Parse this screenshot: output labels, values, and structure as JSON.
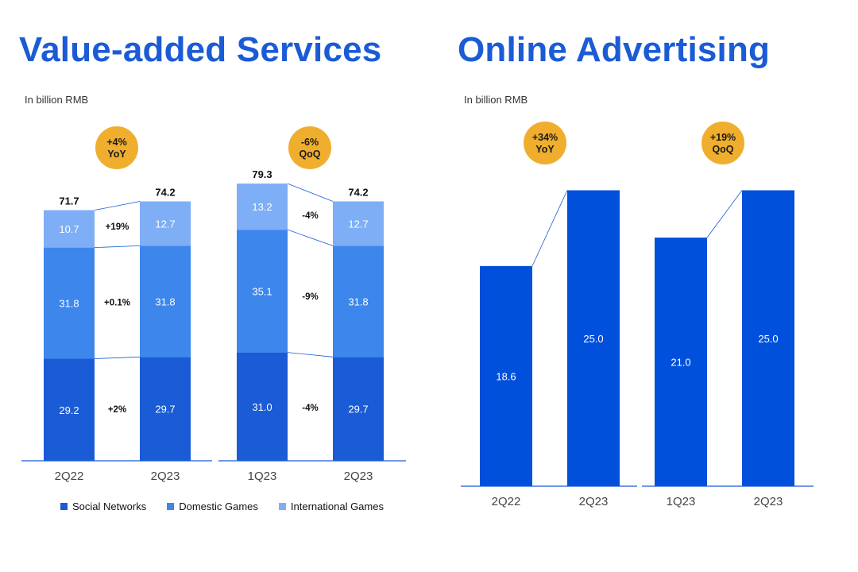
{
  "colors": {
    "social": "#1a5bd6",
    "domestic": "#3d86ec",
    "international": "#7eaef5",
    "ads": "#0050dc",
    "badge": "#f0ae2e",
    "axis": "#1a5bd6",
    "title": "#1a5bd6"
  },
  "vas": {
    "title": "Value-added Services",
    "unit": "In billion RMB"
  },
  "ads": {
    "title": "Online Advertising",
    "unit": "In billion RMB"
  },
  "legend": [
    {
      "label": "Social Networks",
      "series": "social"
    },
    {
      "label": "Domestic Games",
      "series": "domestic"
    },
    {
      "label": "International Games",
      "series": "international"
    }
  ],
  "chart_data": [
    {
      "type": "bar",
      "stacked": true,
      "name": "vas-yoy",
      "title": "Value-added Services",
      "unit": "In billion RMB",
      "categories": [
        "2Q22",
        "2Q23"
      ],
      "totals": [
        "71.7",
        "74.2"
      ],
      "series": [
        {
          "key": "social",
          "name": "Social Networks",
          "values": [
            29.2,
            29.7
          ]
        },
        {
          "key": "domestic",
          "name": "Domestic Games",
          "values": [
            31.8,
            31.8
          ]
        },
        {
          "key": "international",
          "name": "International Games",
          "values": [
            10.7,
            12.7
          ]
        }
      ],
      "changes": [
        "+2%",
        "+0.1%",
        "+19%"
      ],
      "badge": {
        "value": "+4%",
        "label": "YoY"
      }
    },
    {
      "type": "bar",
      "stacked": true,
      "name": "vas-qoq",
      "categories": [
        "1Q23",
        "2Q23"
      ],
      "totals": [
        "79.3",
        "74.2"
      ],
      "series": [
        {
          "key": "social",
          "name": "Social Networks",
          "values": [
            31.0,
            29.7
          ]
        },
        {
          "key": "domestic",
          "name": "Domestic Games",
          "values": [
            35.1,
            31.8
          ]
        },
        {
          "key": "international",
          "name": "International Games",
          "values": [
            13.2,
            12.7
          ]
        }
      ],
      "changes": [
        "-4%",
        "-9%",
        "-4%"
      ],
      "badge": {
        "value": "-6%",
        "label": "QoQ"
      }
    },
    {
      "type": "bar",
      "name": "ads-yoy",
      "title": "Online Advertising",
      "unit": "In billion RMB",
      "categories": [
        "2Q22",
        "2Q23"
      ],
      "values": [
        18.6,
        25.0
      ],
      "labels": [
        "18.6",
        "25.0"
      ],
      "badge": {
        "value": "+34%",
        "label": "YoY"
      }
    },
    {
      "type": "bar",
      "name": "ads-qoq",
      "categories": [
        "1Q23",
        "2Q23"
      ],
      "values": [
        21.0,
        25.0
      ],
      "labels": [
        "21.0",
        "25.0"
      ],
      "badge": {
        "value": "+19%",
        "label": "QoQ"
      }
    }
  ]
}
